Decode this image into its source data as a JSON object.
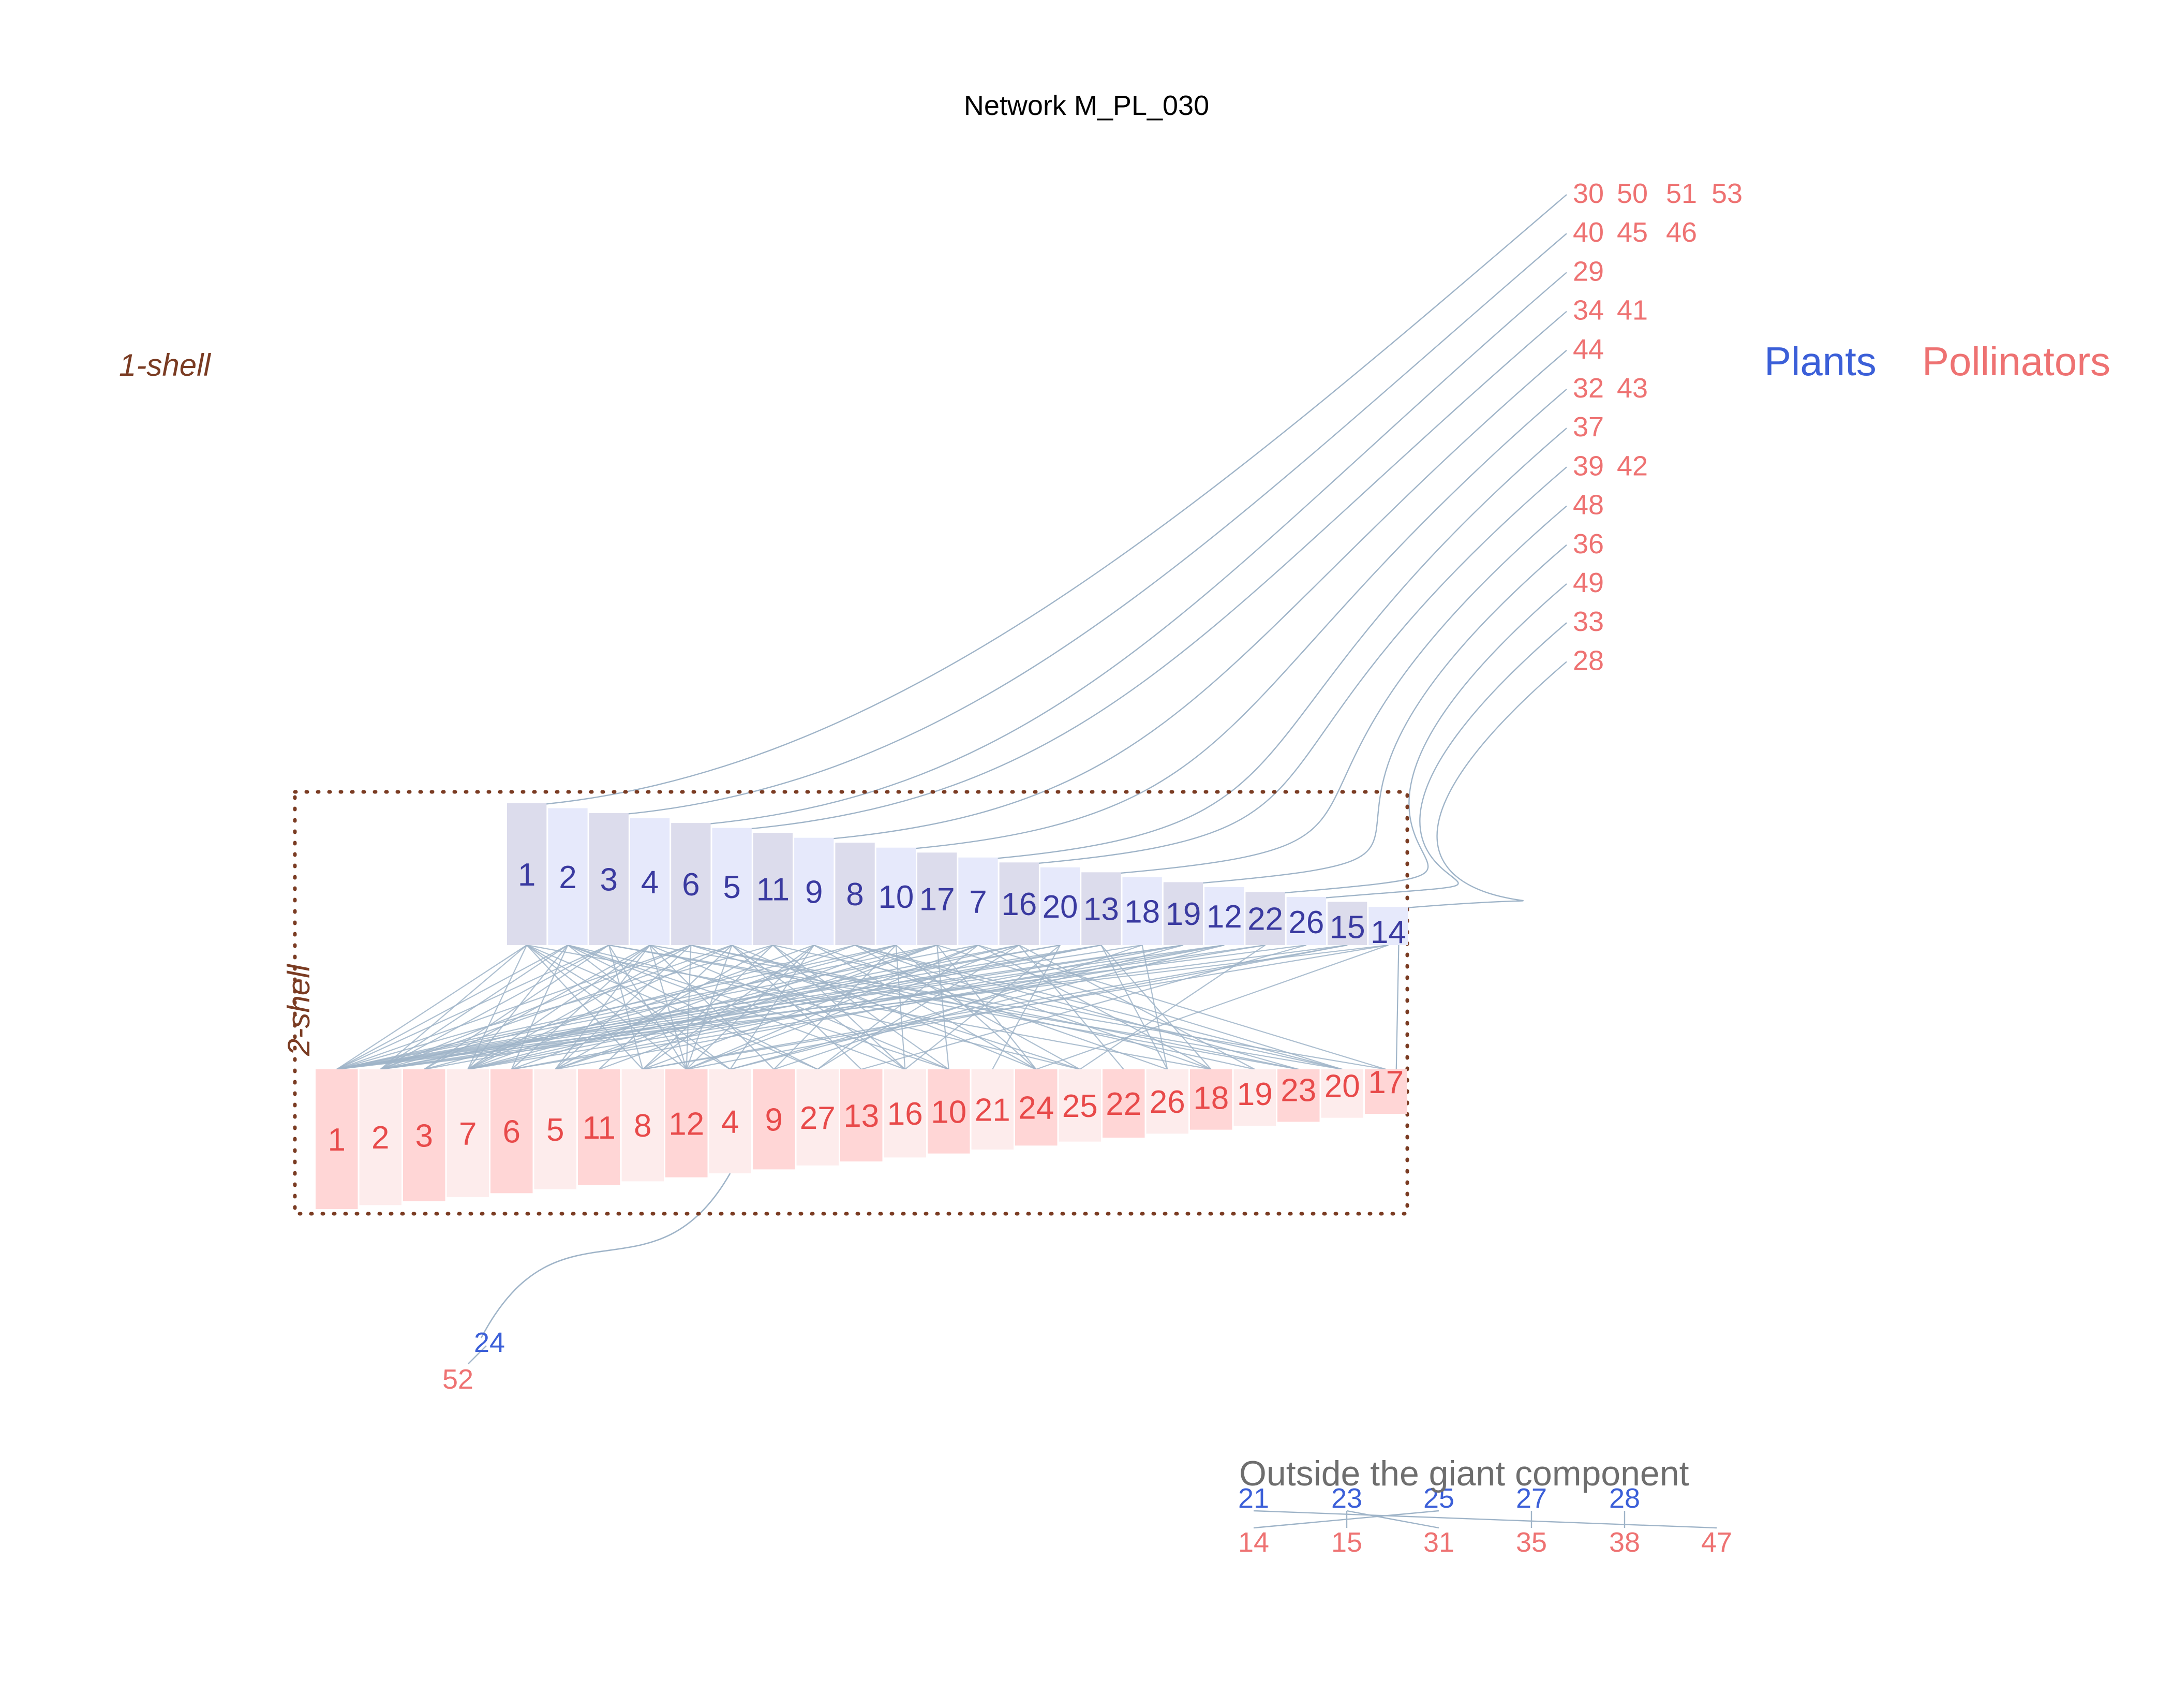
{
  "title": "Network M_PL_030",
  "colors": {
    "link": "#9fb4c8",
    "plant_text": "#3a3aa0",
    "plant_label_blue": "#3b5fd8",
    "pollinator_text": "#e84a4a",
    "pollinator_label": "#ee7272",
    "plant_fill_dark": "#dcdcec",
    "plant_fill_light": "#e6e9fb",
    "poll_fill_dark": "#ffd6d6",
    "poll_fill_light": "#fdecec",
    "shell": "#7a3b22",
    "outside_title": "#6e6e6e"
  },
  "legend": {
    "plants": "Plants",
    "pollinators": "Pollinators"
  },
  "shells": {
    "one": "1-shell",
    "two": "2-shell"
  },
  "core": {
    "plants": [
      "1",
      "2",
      "3",
      "4",
      "6",
      "5",
      "11",
      "9",
      "8",
      "10",
      "17",
      "7",
      "16",
      "20",
      "13",
      "18",
      "19",
      "12",
      "22",
      "26",
      "15",
      "14"
    ],
    "pollinators": [
      "1",
      "2",
      "3",
      "7",
      "6",
      "5",
      "11",
      "8",
      "12",
      "4",
      "9",
      "27",
      "13",
      "16",
      "10",
      "21",
      "24",
      "25",
      "22",
      "26",
      "18",
      "19",
      "23",
      "20",
      "17"
    ]
  },
  "one_shell_rows": [
    [
      "30",
      "50",
      "51",
      "53"
    ],
    [
      "40",
      "45",
      "46"
    ],
    [
      "29"
    ],
    [
      "34",
      "41"
    ],
    [
      "44"
    ],
    [
      "32",
      "43"
    ],
    [
      "37"
    ],
    [
      "39",
      "42"
    ],
    [
      "48"
    ],
    [
      "36"
    ],
    [
      "49"
    ],
    [
      "33"
    ],
    [
      "28"
    ]
  ],
  "tail": {
    "plant": "24",
    "pollinator": "52"
  },
  "outside": {
    "title": "Outside the giant component",
    "plants": [
      "21",
      "23",
      "25",
      "27",
      "28"
    ],
    "pollinators": [
      "14",
      "15",
      "31",
      "35",
      "38",
      "47"
    ]
  }
}
